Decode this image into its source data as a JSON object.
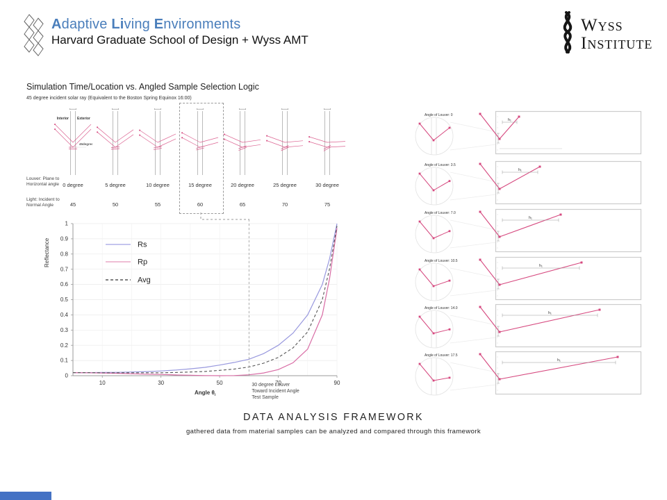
{
  "header": {
    "title_segments": [
      {
        "t": "A",
        "b": true
      },
      {
        "t": "daptive ",
        "b": false
      },
      {
        "t": "Li",
        "b": true
      },
      {
        "t": "ving ",
        "b": false
      },
      {
        "t": "E",
        "b": true
      },
      {
        "t": "nvironments",
        "b": false
      }
    ],
    "title": "Adaptive Living Environments",
    "subtitle": "Harvard Graduate School of Design + Wyss AMT",
    "wyss_line1": "Wyss",
    "wyss_line2": "Institute"
  },
  "colors": {
    "title_blue": "#4a7ebb",
    "ray_pink": "#d6497f",
    "rs_blue": "#9898de",
    "rp_pink": "#d86ba4",
    "avg_gray": "#555555",
    "footer_blue": "#4472c4",
    "diagram_gray": "#aaaaaa"
  },
  "selection_diagram": {
    "title": "Simulation Time/Location vs. Angled Sample Selection Logic",
    "subtitle": "45 degree incident solar ray (Equivalent to the Boston Spring Equinox 16:00)",
    "interior_label": "Interior",
    "exterior_label": "Exterior",
    "ray_angle_label": "45degree",
    "louver_row_label": "Louver: Plane to\nHorizontal angle",
    "light_row_label": "Light: Incident to\nNormal Angle",
    "columns": [
      {
        "louver": "0 degree",
        "incident": "45",
        "selected": false
      },
      {
        "louver": "5 degree",
        "incident": "50",
        "selected": false
      },
      {
        "louver": "10 degree",
        "incident": "55",
        "selected": false
      },
      {
        "louver": "15 degree",
        "incident": "60",
        "selected": true
      },
      {
        "louver": "20 degree",
        "incident": "65",
        "selected": false
      },
      {
        "louver": "25 degree",
        "incident": "70",
        "selected": false
      },
      {
        "louver": "30 degree",
        "incident": "75",
        "selected": false
      }
    ]
  },
  "chart_data": {
    "type": "line",
    "xlabel": "Angle",
    "xlabel_symbol": "θ",
    "xlabel_sub": "i",
    "ylabel": "Reflectance",
    "xlim": [
      0,
      90
    ],
    "ylim": [
      0,
      1
    ],
    "x_ticks": [
      10,
      30,
      50,
      70,
      90
    ],
    "y_ticks": [
      0,
      0.1,
      0.2,
      0.3,
      0.4,
      0.5,
      0.6,
      0.7,
      0.8,
      0.9,
      1
    ],
    "grid": true,
    "legend_position": "upper-left-inside",
    "x": [
      0,
      5,
      10,
      15,
      20,
      25,
      30,
      35,
      40,
      45,
      50,
      55,
      60,
      65,
      70,
      75,
      80,
      85,
      87.5,
      90
    ],
    "series": [
      {
        "name": "Rs",
        "dash": false,
        "values": [
          0.02,
          0.02,
          0.021,
          0.022,
          0.024,
          0.027,
          0.031,
          0.037,
          0.045,
          0.055,
          0.07,
          0.087,
          0.108,
          0.145,
          0.2,
          0.28,
          0.4,
          0.6,
          0.77,
          1.0
        ]
      },
      {
        "name": "Rp",
        "dash": false,
        "values": [
          0.02,
          0.019,
          0.018,
          0.016,
          0.013,
          0.01,
          0.008,
          0.005,
          0.003,
          0.001,
          0.0,
          0.001,
          0.006,
          0.018,
          0.04,
          0.085,
          0.175,
          0.4,
          0.64,
          0.97
        ]
      },
      {
        "name": "Avg",
        "dash": true,
        "values": [
          0.02,
          0.02,
          0.019,
          0.019,
          0.019,
          0.019,
          0.019,
          0.021,
          0.024,
          0.028,
          0.035,
          0.044,
          0.057,
          0.082,
          0.12,
          0.183,
          0.288,
          0.5,
          0.705,
          0.985
        ]
      }
    ],
    "annotation": {
      "x": 60,
      "lines": [
        "30 degree Louver",
        "Toward Incident Angle",
        "Test Sample"
      ]
    }
  },
  "right_panel": {
    "label_prefix": "Angle of Louver:",
    "dim_label": "h₁",
    "rows": [
      {
        "angle_value": "0"
      },
      {
        "angle_value": "3.5"
      },
      {
        "angle_value": "7.0"
      },
      {
        "angle_value": "10.5"
      },
      {
        "angle_value": "14.0"
      },
      {
        "angle_value": "17.5"
      }
    ]
  },
  "footer": {
    "title": "DATA ANALYSIS FRAMEWORK",
    "subtitle": "gathered data from material samples can be analyzed and compared through this framework"
  }
}
